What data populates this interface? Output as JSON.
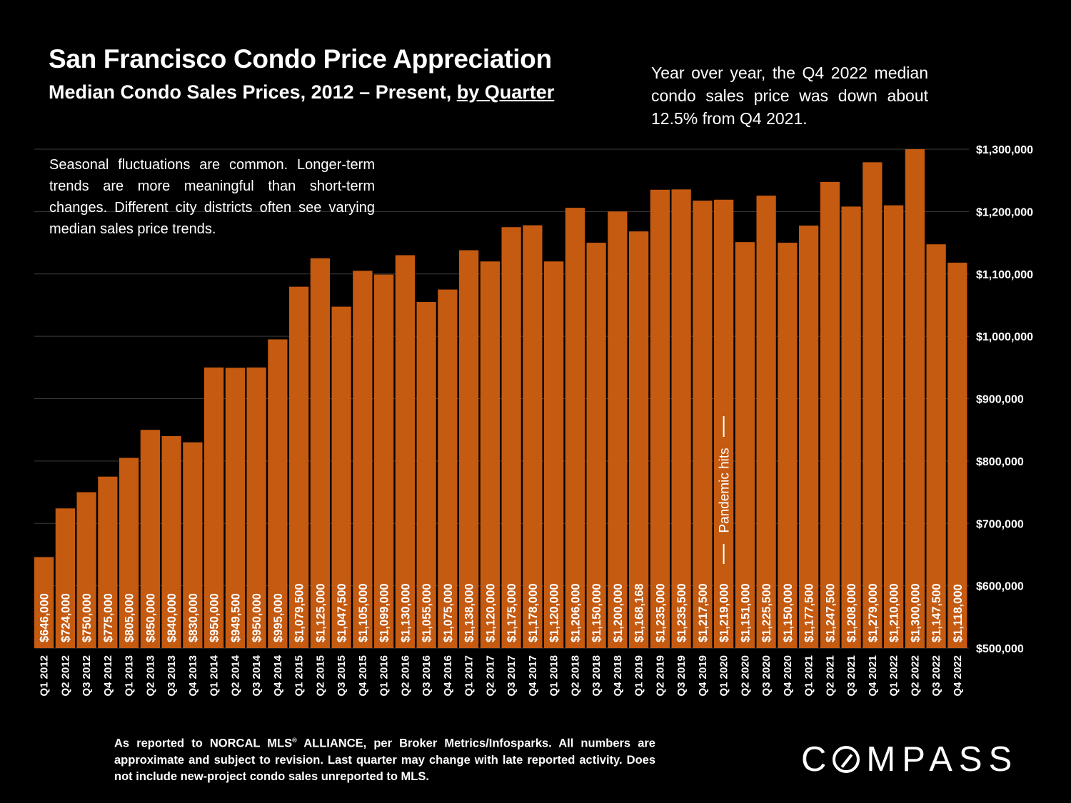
{
  "title": "San Francisco Condo Price Appreciation",
  "subtitle_pre": "Median Condo Sales Prices, 2012 – Present, ",
  "subtitle_link": "by Quarter",
  "yoy_note": "Year over year, the Q4 2022 median condo sales price was down about 12.5% from Q4 2021.",
  "seasonal_note": "Seasonal fluctuations are common. Longer-term trends are more meaningful than short-term changes. Different city districts often see varying median sales price trends.",
  "footer_a": "As reported to NORCAL MLS",
  "footer_reg": "®",
  "footer_b": " ALLIANCE, per Broker Metrics/Infosparks. All numbers are approximate and subject to revision. Last quarter may change with late reported activity. Does not include new-project condo sales unreported to MLS.",
  "logo_c": "C",
  "logo_rest": "MPASS",
  "annotation": "Pandemic hits",
  "colors": {
    "bar": "#c55a11",
    "grid": "#3a3a3a",
    "background": "#000000",
    "text": "#ffffff"
  },
  "chart_data": {
    "type": "bar",
    "title": "San Francisco Condo Price Appreciation",
    "ylim": [
      500000,
      1300000
    ],
    "yticks": [
      500000,
      600000,
      700000,
      800000,
      900000,
      1000000,
      1100000,
      1200000,
      1300000
    ],
    "ytick_labels": [
      "$500,000",
      "$600,000",
      "$700,000",
      "$800,000",
      "$900,000",
      "$1,000,000",
      "$1,100,000",
      "$1,200,000",
      "$1,300,000"
    ],
    "grid": true,
    "categories": [
      "Q1 2012",
      "Q2 2012",
      "Q3 2012",
      "Q4 2012",
      "Q1 2013",
      "Q2 2013",
      "Q3 2013",
      "Q4 2013",
      "Q1 2014",
      "Q2 2014",
      "Q3 2014",
      "Q4 2014",
      "Q1 2015",
      "Q2 2015",
      "Q3 2015",
      "Q4 2015",
      "Q1 2016",
      "Q2 2016",
      "Q3 2016",
      "Q4 2016",
      "Q1 2017",
      "Q2 2017",
      "Q3 2017",
      "Q4 2017",
      "Q1 2018",
      "Q2 2018",
      "Q3 2018",
      "Q4 2018",
      "Q1 2019",
      "Q2 2019",
      "Q3 2019",
      "Q4 2019",
      "Q1 2020",
      "Q2 2020",
      "Q3 2020",
      "Q4 2020",
      "Q1 2021",
      "Q2 2021",
      "Q3 2021",
      "Q4 2021",
      "Q1 2022",
      "Q2 2022",
      "Q3 2022",
      "Q4 2022"
    ],
    "values": [
      646000,
      724000,
      750000,
      775000,
      805000,
      850000,
      840000,
      830000,
      950000,
      949500,
      950000,
      995000,
      1079500,
      1125000,
      1047500,
      1105000,
      1099000,
      1130000,
      1055000,
      1075000,
      1138000,
      1120000,
      1175000,
      1178000,
      1120000,
      1206000,
      1150000,
      1200000,
      1168168,
      1235000,
      1235500,
      1217500,
      1219000,
      1151000,
      1225500,
      1150000,
      1177500,
      1247500,
      1208000,
      1279000,
      1210000,
      1300000,
      1147500,
      1118000
    ],
    "value_labels": [
      "$646,000",
      "$724,000",
      "$750,000",
      "$775,000",
      "$805,000",
      "$850,000",
      "$840,000",
      "$830,000",
      "$950,000",
      "$949,500",
      "$950,000",
      "$995,000",
      "$1,079,500",
      "$1,125,000",
      "$1,047,500",
      "$1,105,000",
      "$1,099,000",
      "$1,130,000",
      "$1,055,000",
      "$1,075,000",
      "$1,138,000",
      "$1,120,000",
      "$1,175,000",
      "$1,178,000",
      "$1,120,000",
      "$1,206,000",
      "$1,150,000",
      "$1,200,000",
      "$1,168,168",
      "$1,235,000",
      "$1,235,500",
      "$1,217,500",
      "$1,219,000",
      "$1,151,000",
      "$1,225,500",
      "$1,150,000",
      "$1,177,500",
      "$1,247,500",
      "$1,208,000",
      "$1,279,000",
      "$1,210,000",
      "$1,300,000",
      "$1,147,500",
      "$1,118,000"
    ],
    "annotation_category": "Q1 2020"
  }
}
